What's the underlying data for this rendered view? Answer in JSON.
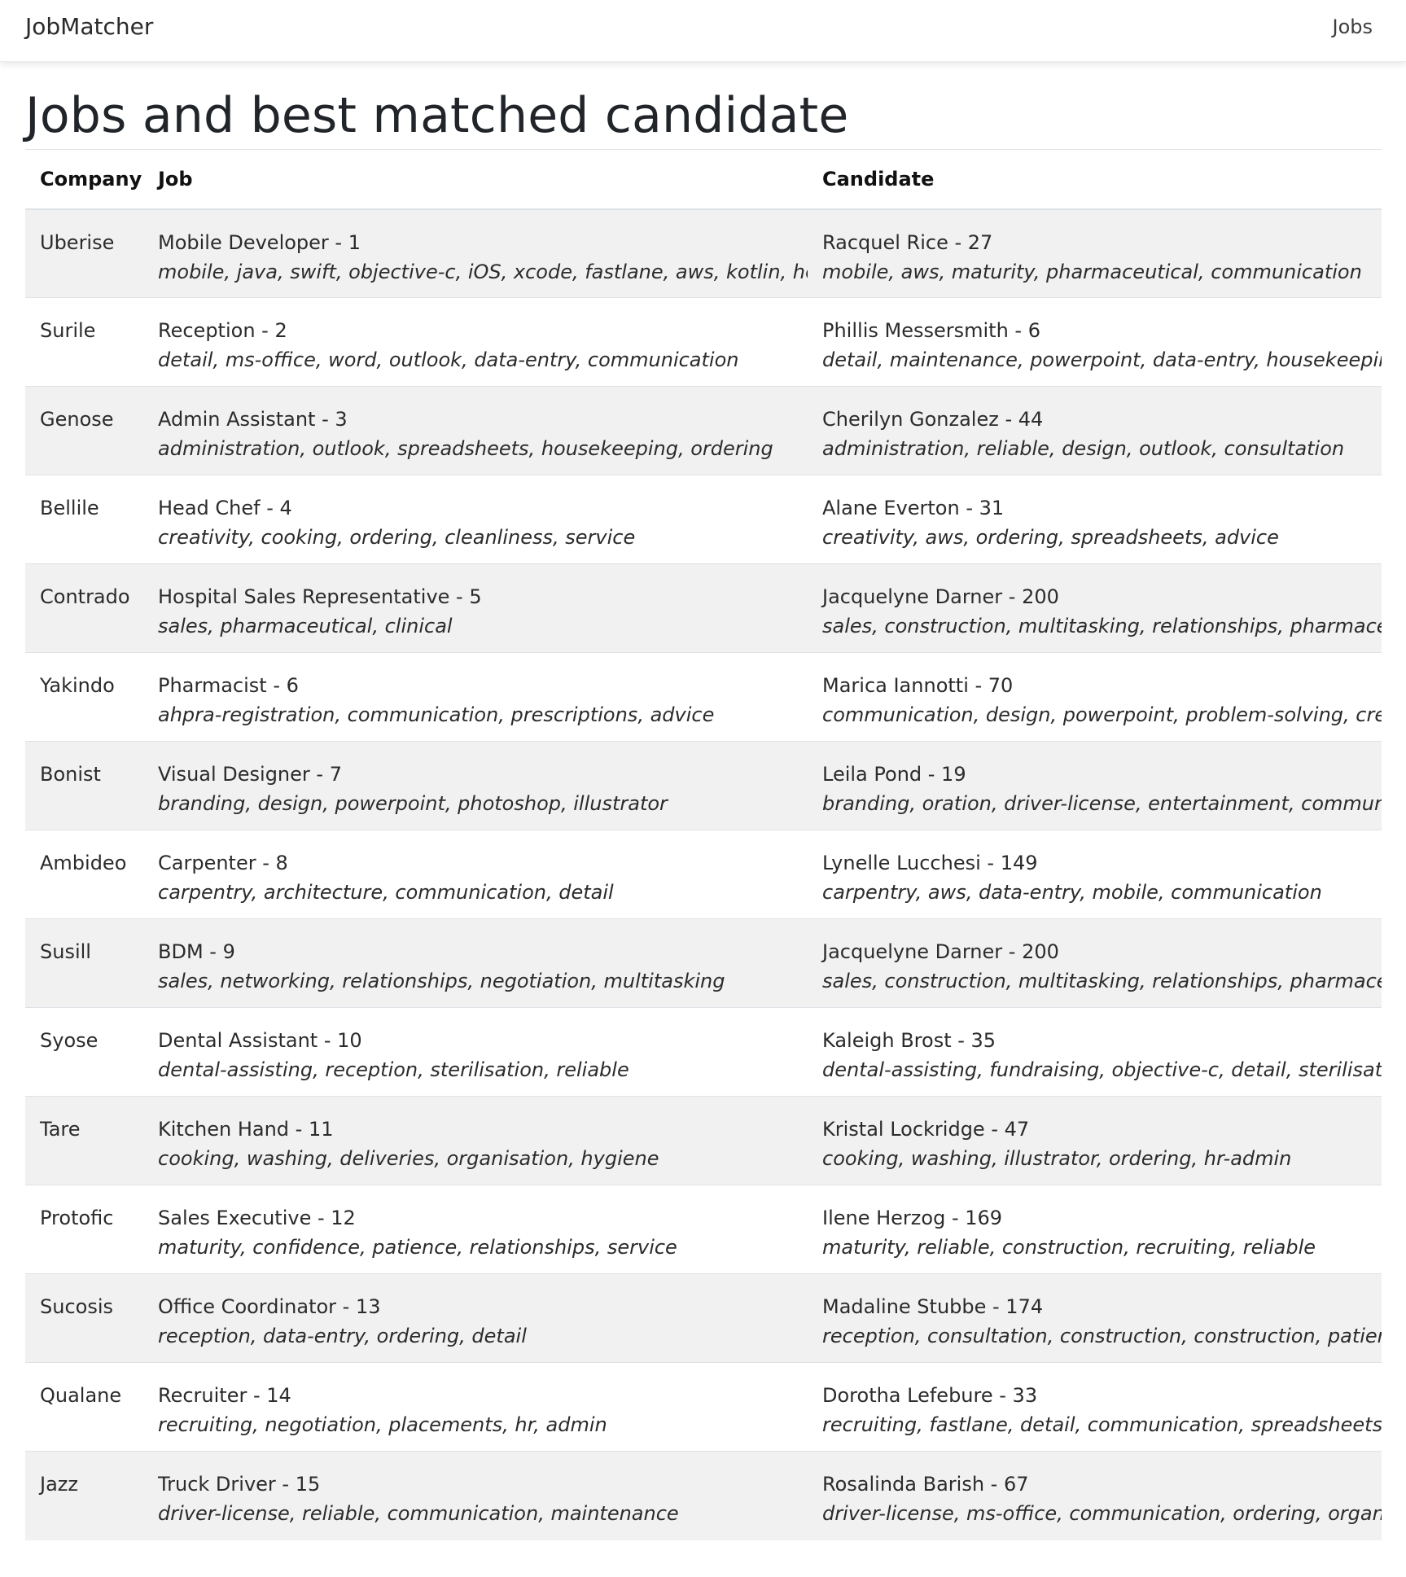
{
  "navbar": {
    "brand": "JobMatcher",
    "jobs_link": "Jobs"
  },
  "page": {
    "title": "Jobs and best matched candidate"
  },
  "table": {
    "headers": {
      "company": "Company",
      "job": "Job",
      "candidate": "Candidate"
    },
    "rows": [
      {
        "company": "Uberise",
        "job_title": "Mobile Developer - 1",
        "job_skills": "mobile, java, swift, objective-c, iOS, xcode, fastlane, aws, kotlin, hockey-app",
        "candidate_name": "Racquel Rice - 27",
        "candidate_skills": "mobile, aws, maturity, pharmaceutical, communication"
      },
      {
        "company": "Surile",
        "job_title": "Reception - 2",
        "job_skills": "detail, ms-office, word, outlook, data-entry, communication",
        "candidate_name": "Phillis Messersmith - 6",
        "candidate_skills": "detail, maintenance, powerpoint, data-entry, housekeeping"
      },
      {
        "company": "Genose",
        "job_title": "Admin Assistant - 3",
        "job_skills": "administration, outlook, spreadsheets, housekeeping, ordering",
        "candidate_name": "Cherilyn Gonzalez - 44",
        "candidate_skills": "administration, reliable, design, outlook, consultation"
      },
      {
        "company": "Bellile",
        "job_title": "Head Chef - 4",
        "job_skills": "creativity, cooking, ordering, cleanliness, service",
        "candidate_name": "Alane Everton - 31",
        "candidate_skills": "creativity, aws, ordering, spreadsheets, advice"
      },
      {
        "company": "Contrado",
        "job_title": "Hospital Sales Representative - 5",
        "job_skills": "sales, pharmaceutical, clinical",
        "candidate_name": "Jacquelyne Darner - 200",
        "candidate_skills": "sales, construction, multitasking, relationships, pharmaceutical"
      },
      {
        "company": "Yakindo",
        "job_title": "Pharmacist - 6",
        "job_skills": "ahpra-registration, communication, prescriptions, advice",
        "candidate_name": "Marica Iannotti - 70",
        "candidate_skills": "communication, design, powerpoint, problem-solving, creativity"
      },
      {
        "company": "Bonist",
        "job_title": "Visual Designer - 7",
        "job_skills": "branding, design, powerpoint, photoshop, illustrator",
        "candidate_name": "Leila Pond - 19",
        "candidate_skills": "branding, oration, driver-license, entertainment, communication"
      },
      {
        "company": "Ambideo",
        "job_title": "Carpenter - 8",
        "job_skills": "carpentry, architecture, communication, detail",
        "candidate_name": "Lynelle Lucchesi - 149",
        "candidate_skills": "carpentry, aws, data-entry, mobile, communication"
      },
      {
        "company": "Susill",
        "job_title": "BDM - 9",
        "job_skills": "sales, networking, relationships, negotiation, multitasking",
        "candidate_name": "Jacquelyne Darner - 200",
        "candidate_skills": "sales, construction, multitasking, relationships, pharmaceutical"
      },
      {
        "company": "Syose",
        "job_title": "Dental Assistant - 10",
        "job_skills": "dental-assisting, reception, sterilisation, reliable",
        "candidate_name": "Kaleigh Brost - 35",
        "candidate_skills": "dental-assisting, fundraising, objective-c, detail, sterilisation"
      },
      {
        "company": "Tare",
        "job_title": "Kitchen Hand - 11",
        "job_skills": "cooking, washing, deliveries, organisation, hygiene",
        "candidate_name": "Kristal Lockridge - 47",
        "candidate_skills": "cooking, washing, illustrator, ordering, hr-admin"
      },
      {
        "company": "Protofic",
        "job_title": "Sales Executive - 12",
        "job_skills": "maturity, confidence, patience, relationships, service",
        "candidate_name": "Ilene Herzog - 169",
        "candidate_skills": "maturity, reliable, construction, recruiting, reliable"
      },
      {
        "company": "Sucosis",
        "job_title": "Office Coordinator - 13",
        "job_skills": "reception, data-entry, ordering, detail",
        "candidate_name": "Madaline Stubbe - 174",
        "candidate_skills": "reception, consultation, construction, construction, patience"
      },
      {
        "company": "Qualane",
        "job_title": "Recruiter - 14",
        "job_skills": "recruiting, negotiation, placements, hr, admin",
        "candidate_name": "Dorotha Lefebure - 33",
        "candidate_skills": "recruiting, fastlane, detail, communication, spreadsheets"
      },
      {
        "company": "Jazz",
        "job_title": "Truck Driver - 15",
        "job_skills": "driver-license, reliable, communication, maintenance",
        "candidate_name": "Rosalinda Barish - 67",
        "candidate_skills": "driver-license, ms-office, communication, ordering, organisation"
      }
    ]
  }
}
